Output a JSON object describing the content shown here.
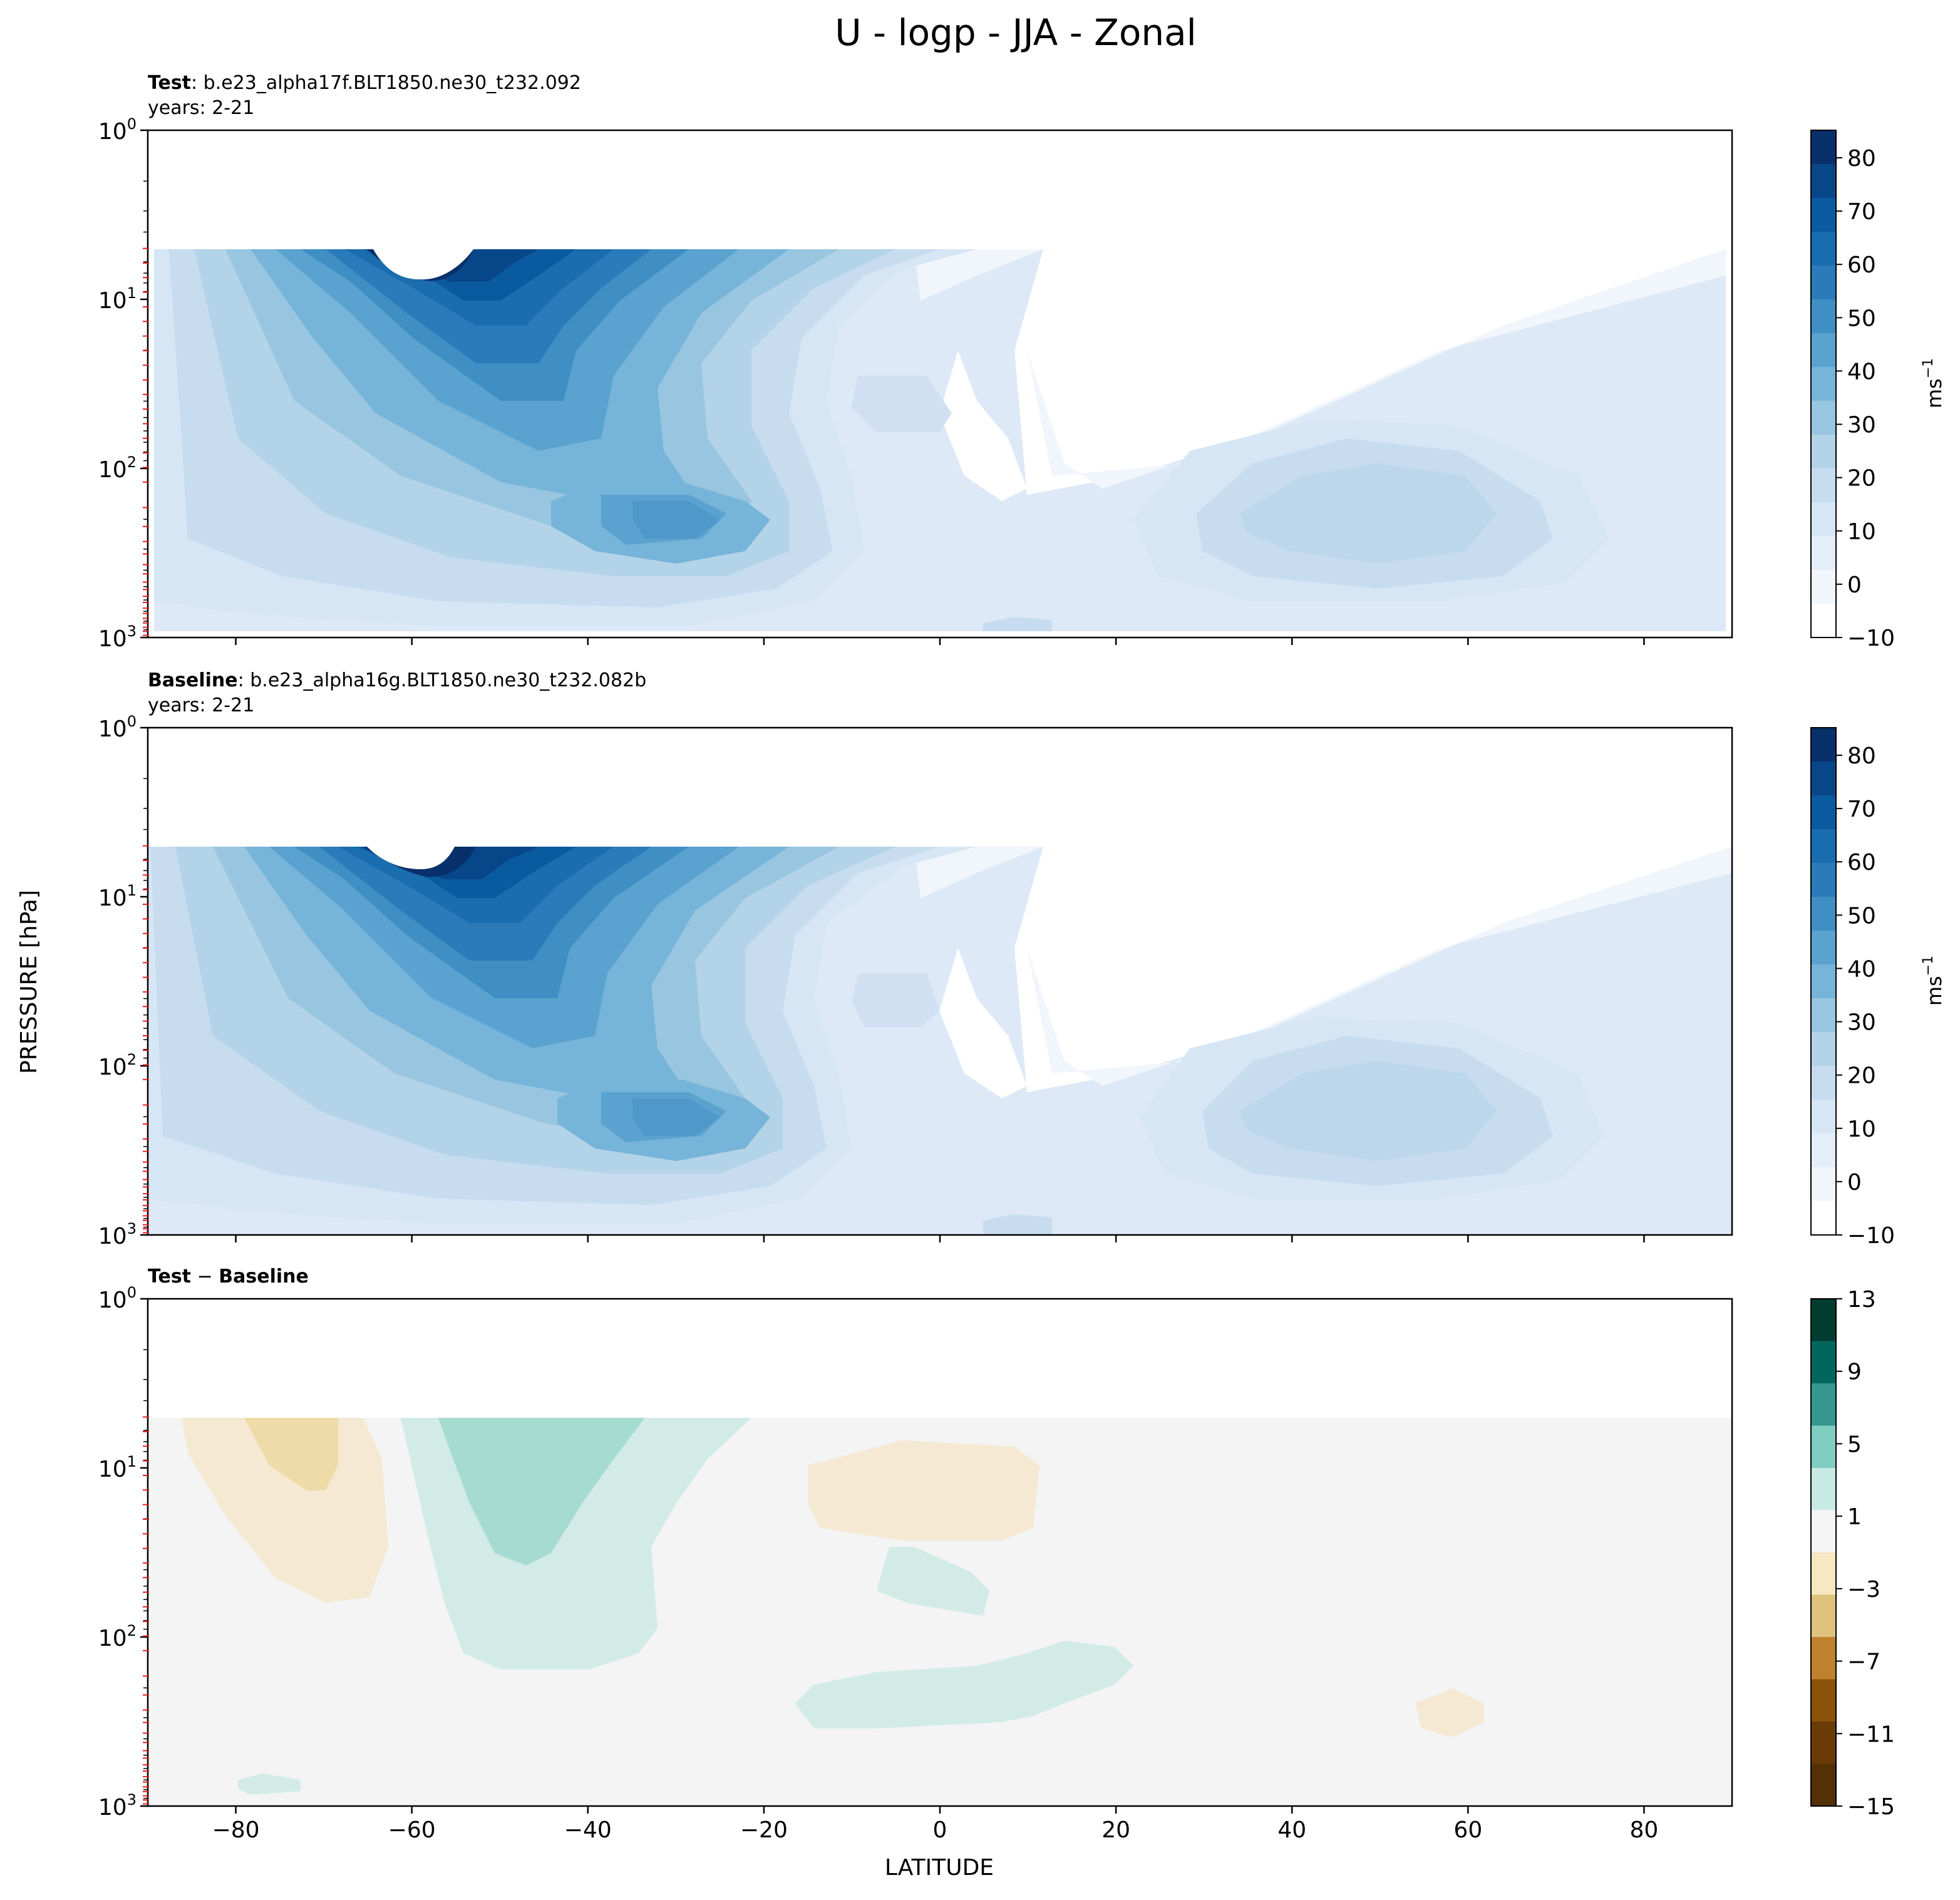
{
  "chart_data": {
    "type": "heatmap",
    "title": "U - logp - JJA - Zonal",
    "xlabel": "LATITUDE",
    "ylabel": "PRESSURE [hPa]",
    "xlim": [
      -90,
      90
    ],
    "ylim": [
      1000,
      1
    ],
    "ymax_data": 5,
    "xticks": [
      -80,
      -60,
      -40,
      -20,
      0,
      20,
      40,
      60,
      80
    ],
    "xtick_labels": [
      "−80",
      "−60",
      "−40",
      "−20",
      "0",
      "20",
      "40",
      "60",
      "80"
    ],
    "yticks": [
      {
        "mant": "10",
        "exp": "0",
        "value": 1
      },
      {
        "mant": "10",
        "exp": "1",
        "value": 10
      },
      {
        "mant": "10",
        "exp": "2",
        "value": 100
      },
      {
        "mant": "10",
        "exp": "3",
        "value": 1000
      }
    ],
    "panels": [
      {
        "id": "test",
        "title_bold": "Test",
        "title_rest": ": b.e23_alpha17f.BLT1850.ne30_t232.092",
        "subtitle": "years: 2-21",
        "colormap": "Blues",
        "colorbar": {
          "label_base": "ms",
          "label_exp": "−1",
          "ticks": [
            "80",
            "70",
            "60",
            "50",
            "40",
            "30",
            "20",
            "10",
            "0",
            "−10"
          ],
          "colors": [
            "#08306b",
            "#08468a",
            "#0a5aa0",
            "#1a6dae",
            "#2b7bba",
            "#3f8ec4",
            "#5aa2cf",
            "#77b4d9",
            "#98c6e0",
            "#b3d3e8",
            "#c8dcf0",
            "#d6e6f4",
            "#e4eef9",
            "#f1f6fc",
            "#ffffff"
          ]
        },
        "regions": [
          {
            "level": 10,
            "center": [
              -60,
              6
            ],
            "half_width": 36,
            "half_logp": 1.5,
            "value_kind": "jet"
          },
          {
            "level": 30,
            "center": [
              -30,
              200
            ],
            "half_width": 22,
            "half_logp": 0.35,
            "value_kind": "subjet"
          },
          {
            "level": 20,
            "center": [
              -5,
              40
            ],
            "half_width": 7,
            "half_logp": 0.25,
            "value_kind": "blob"
          },
          {
            "level": 20,
            "center": [
              47,
              200
            ],
            "half_width": 25,
            "half_logp": 0.35,
            "value_kind": "nh_jet"
          }
        ]
      },
      {
        "id": "baseline",
        "title_bold": "Baseline",
        "title_rest": ": b.e23_alpha16g.BLT1850.ne30_t232.082b",
        "subtitle": "years: 2-21",
        "colormap": "Blues",
        "colorbar": {
          "label_base": "ms",
          "label_exp": "−1",
          "ticks": [
            "80",
            "70",
            "60",
            "50",
            "40",
            "30",
            "20",
            "10",
            "0",
            "−10"
          ],
          "colors": [
            "#08306b",
            "#08468a",
            "#0a5aa0",
            "#1a6dae",
            "#2b7bba",
            "#3f8ec4",
            "#5aa2cf",
            "#77b4d9",
            "#98c6e0",
            "#b3d3e8",
            "#c8dcf0",
            "#d6e6f4",
            "#e4eef9",
            "#f1f6fc",
            "#ffffff"
          ]
        }
      },
      {
        "id": "diff",
        "title_bold": "Test",
        "title_sep": " − ",
        "title_bold2": "Baseline",
        "colormap": "BrBG",
        "colorbar": {
          "ticks": [
            "13",
            "9",
            "5",
            "1",
            "−3",
            "−7",
            "−11",
            "−15"
          ],
          "colors": [
            "#003c30",
            "#01665e",
            "#35978f",
            "#80cdc1",
            "#c7eae5",
            "#f5f5f5",
            "#f6e8c3",
            "#dfc27d",
            "#bf812d",
            "#8c510a",
            "#6b3b07",
            "#543005"
          ]
        }
      }
    ]
  }
}
